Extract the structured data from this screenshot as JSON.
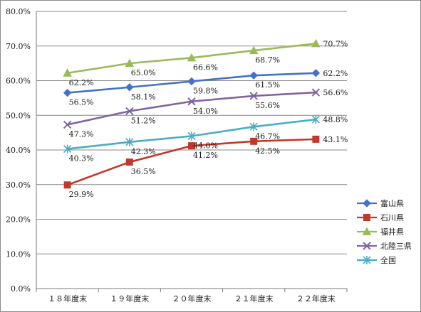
{
  "chart_data": {
    "type": "line",
    "categories": [
      "１８年度末",
      "１９年度末",
      "２０年度末",
      "２１年度末",
      "２２年度末"
    ],
    "ylim": [
      0,
      80
    ],
    "ytick_step": 10,
    "ytick_labels": [
      "0.0%",
      "10.0%",
      "20.0%",
      "30.0%",
      "40.0%",
      "50.0%",
      "60.0%",
      "70.0%",
      "80.0%"
    ],
    "grid": "horizontal",
    "legend_position": "right",
    "title": "",
    "xlabel": "",
    "ylabel": "",
    "series": [
      {
        "name": "富山県",
        "values": [
          56.5,
          58.1,
          59.8,
          61.5,
          62.2
        ],
        "labels": [
          "56.5%",
          "58.1%",
          "59.8%",
          "61.5%",
          "62.2%"
        ],
        "color": "#4472C4",
        "marker": "diamond"
      },
      {
        "name": "石川県",
        "values": [
          29.9,
          36.5,
          41.2,
          42.5,
          43.1
        ],
        "labels": [
          "29.9%",
          "36.5%",
          "41.2%",
          "42.5%",
          "43.1%"
        ],
        "color": "#C0392B",
        "marker": "square"
      },
      {
        "name": "福井県",
        "values": [
          62.2,
          65.0,
          66.6,
          68.7,
          70.7
        ],
        "labels": [
          "62.2%",
          "65.0%",
          "66.6%",
          "68.7%",
          "70.7%"
        ],
        "color": "#9BBB59",
        "marker": "triangle"
      },
      {
        "name": "北陸三県",
        "values": [
          47.3,
          51.2,
          54.0,
          55.6,
          56.6
        ],
        "labels": [
          "47.3%",
          "51.2%",
          "54.0%",
          "55.6%",
          "56.6%"
        ],
        "color": "#8064A2",
        "marker": "x"
      },
      {
        "name": "全国",
        "values": [
          40.3,
          42.3,
          44.0,
          46.7,
          48.8
        ],
        "labels": [
          "40.3%",
          "42.3%",
          "44.0%",
          "46.7%",
          "48.8%"
        ],
        "color": "#4BACC6",
        "marker": "asterisk"
      }
    ]
  }
}
